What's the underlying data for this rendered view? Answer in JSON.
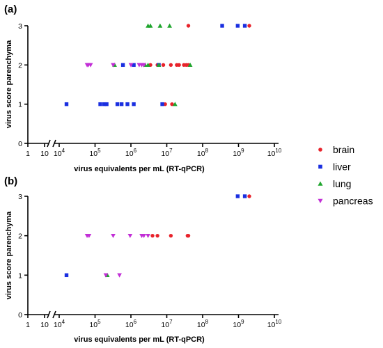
{
  "figure": {
    "legend": {
      "placement": "right",
      "entries": [
        {
          "name": "brain",
          "marker": "circle",
          "color": "#e8232b"
        },
        {
          "name": "liver",
          "marker": "square",
          "color": "#1a2fe0"
        },
        {
          "name": "lung",
          "marker": "triangle-up",
          "color": "#1fa52d"
        },
        {
          "name": "pancreas",
          "marker": "triangle-down",
          "color": "#c22fd6"
        }
      ]
    }
  },
  "chart_data": [
    {
      "type": "scatter",
      "panel_label": "(a)",
      "xlabel": "virus equivalents per mL (RT-qPCR)",
      "ylabel": "virus score parenchyma",
      "xscale": "log",
      "axis_break": "between 10 and 10^4",
      "x_tick_labels": [
        {
          "main": "1",
          "sup": ""
        },
        {
          "main": "10",
          "sup": ""
        },
        {
          "main": "10",
          "sup": "4"
        },
        {
          "main": "10",
          "sup": "5"
        },
        {
          "main": "10",
          "sup": "6"
        },
        {
          "main": "10",
          "sup": "7"
        },
        {
          "main": "10",
          "sup": "8"
        },
        {
          "main": "10",
          "sup": "9"
        },
        {
          "main": "10",
          "sup": "10"
        }
      ],
      "y_tick_labels": [
        "0",
        "1",
        "2",
        "3"
      ],
      "ylim": [
        0,
        3
      ],
      "series": [
        {
          "name": "brain",
          "marker": "circle",
          "color": "#e8232b",
          "x": [
            9000000,
            14000000,
            3500000,
            5500000,
            8000000,
            13000000,
            19000000,
            22000000,
            30000000,
            35000000,
            40000000,
            40000000,
            2000000000
          ],
          "y": [
            1,
            1,
            2,
            2,
            2,
            2,
            2,
            2,
            2,
            2,
            2,
            3,
            3
          ]
        },
        {
          "name": "liver",
          "marker": "square",
          "color": "#1a2fe0",
          "x": [
            16000,
            140000,
            180000,
            210000,
            420000,
            550000,
            800000,
            1200000,
            7500000,
            600000,
            1200000,
            6000000,
            350000000,
            950000000,
            1500000000
          ],
          "y": [
            1,
            1,
            1,
            1,
            1,
            1,
            1,
            1,
            1,
            2,
            2,
            2,
            3,
            3,
            3
          ]
        },
        {
          "name": "lung",
          "marker": "triangle-up",
          "color": "#1fa52d",
          "x": [
            17000000,
            350000,
            2500000,
            3000000,
            6000000,
            45000000,
            3000000,
            3500000,
            6500000,
            12000000
          ],
          "y": [
            1,
            2,
            2,
            2,
            2,
            2,
            3,
            3,
            3,
            3
          ]
        },
        {
          "name": "pancreas",
          "marker": "triangle-down",
          "color": "#c22fd6",
          "x": [
            60000,
            65000,
            75000,
            320000,
            1000000,
            1700000,
            2000000,
            2300000
          ],
          "y": [
            2,
            2,
            2,
            2,
            2,
            2,
            2,
            2
          ]
        }
      ]
    },
    {
      "type": "scatter",
      "panel_label": "(b)",
      "xlabel": "virus equivalents per mL (RT-qPCR)",
      "ylabel": "virus score parenchyma",
      "xscale": "log",
      "axis_break": "between 10 and 10^4",
      "x_tick_labels": [
        {
          "main": "1",
          "sup": ""
        },
        {
          "main": "10",
          "sup": ""
        },
        {
          "main": "10",
          "sup": "4"
        },
        {
          "main": "10",
          "sup": "5"
        },
        {
          "main": "10",
          "sup": "6"
        },
        {
          "main": "10",
          "sup": "7"
        },
        {
          "main": "10",
          "sup": "8"
        },
        {
          "main": "10",
          "sup": "9"
        },
        {
          "main": "10",
          "sup": "10"
        }
      ],
      "y_tick_labels": [
        "0",
        "1",
        "2",
        "3"
      ],
      "ylim": [
        0,
        3
      ],
      "series": [
        {
          "name": "brain",
          "marker": "circle",
          "color": "#e8232b",
          "x": [
            4000000,
            5500000,
            13000000,
            38000000,
            40000000,
            2000000000
          ],
          "y": [
            2,
            2,
            2,
            2,
            2,
            3
          ]
        },
        {
          "name": "liver",
          "marker": "square",
          "color": "#1a2fe0",
          "x": [
            16000,
            950000000,
            1500000000
          ],
          "y": [
            1,
            3,
            3
          ]
        },
        {
          "name": "lung",
          "marker": "triangle-up",
          "color": "#1fa52d",
          "x": [
            220000
          ],
          "y": [
            1
          ]
        },
        {
          "name": "pancreas",
          "marker": "triangle-down",
          "color": "#c22fd6",
          "x": [
            200000,
            480000,
            60000,
            68000,
            320000,
            950000,
            2000000,
            2300000,
            3000000
          ],
          "y": [
            1,
            1,
            2,
            2,
            2,
            2,
            2,
            2,
            2
          ]
        }
      ]
    }
  ]
}
